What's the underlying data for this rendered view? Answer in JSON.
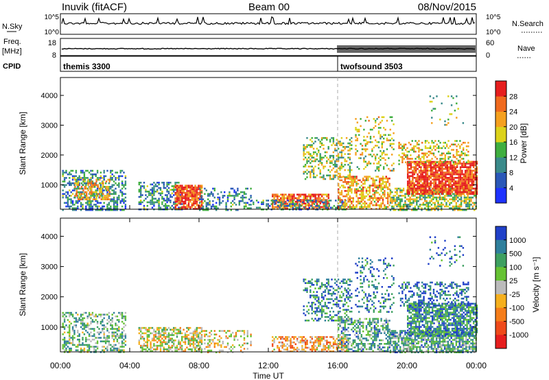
{
  "header": {
    "station": "Inuvik (fitACF)",
    "beam": "Beam 00",
    "date": "08/Nov/2015"
  },
  "noise_panel": {
    "left_label": "N.Sky",
    "right_label": "N.Search",
    "tick_top": "10^5",
    "tick_bottom": "10^0"
  },
  "freq_panel": {
    "left_label_line1": "Freq.",
    "left_label_line2": "[MHz]",
    "right_label": "Nave",
    "left_ticks": [
      "18",
      "8"
    ],
    "right_ticks": [
      "60",
      "0"
    ]
  },
  "cpid_panel": {
    "label": "CPID",
    "programs": [
      {
        "name": "themis 3300",
        "start_hour": 0
      },
      {
        "name": "twofsound 3503",
        "start_hour": 16
      }
    ]
  },
  "chart_data": [
    {
      "type": "heatmap",
      "title": "",
      "xlabel": "Time UT",
      "ylabel": "Slant Range [km]",
      "x_ticks": [
        "00:00",
        "04:00",
        "08:00",
        "12:00",
        "16:00",
        "20:00",
        "00:00"
      ],
      "xlim_hours": [
        0,
        24
      ],
      "ylim": [
        180,
        4600
      ],
      "y_ticks": [
        1000,
        2000,
        3000,
        4000
      ],
      "colorbar": {
        "label": "Power [dB]",
        "ticks": [
          "4",
          "8",
          "12",
          "16",
          "20",
          "24",
          "28"
        ],
        "range": [
          0,
          32
        ],
        "colors": [
          "#1e32ff",
          "#2a58b8",
          "#3a8a8a",
          "#3fae3f",
          "#dcd21a",
          "#f5a01e",
          "#f06a1e",
          "#e61e1e"
        ]
      },
      "regions": [
        {
          "t0": 0.1,
          "t1": 3.8,
          "r0": 180,
          "r1": 1500,
          "level": 0.3,
          "density": 0.45
        },
        {
          "t0": 0.8,
          "t1": 2.8,
          "r0": 500,
          "r1": 1200,
          "level": 0.65,
          "density": 0.55
        },
        {
          "t0": 4.5,
          "t1": 7.0,
          "r0": 180,
          "r1": 1100,
          "level": 0.3,
          "density": 0.5
        },
        {
          "t0": 6.6,
          "t1": 8.2,
          "r0": 200,
          "r1": 1000,
          "level": 0.85,
          "density": 0.85
        },
        {
          "t0": 8.0,
          "t1": 11.0,
          "r0": 180,
          "r1": 900,
          "level": 0.3,
          "density": 0.3
        },
        {
          "t0": 12.2,
          "t1": 15.5,
          "r0": 180,
          "r1": 700,
          "level": 0.82,
          "density": 0.75
        },
        {
          "t0": 11.0,
          "t1": 16.5,
          "r0": 180,
          "r1": 500,
          "level": 0.3,
          "density": 0.4
        },
        {
          "t0": 14.0,
          "t1": 16.8,
          "r0": 1200,
          "r1": 2600,
          "level": 0.5,
          "density": 0.35
        },
        {
          "t0": 16.0,
          "t1": 19.0,
          "r0": 200,
          "r1": 1300,
          "level": 0.7,
          "density": 0.55
        },
        {
          "t0": 17.0,
          "t1": 19.2,
          "r0": 1500,
          "r1": 3300,
          "level": 0.55,
          "density": 0.25
        },
        {
          "t0": 19.0,
          "t1": 24.0,
          "r0": 180,
          "r1": 900,
          "level": 0.5,
          "density": 0.6
        },
        {
          "t0": 20.0,
          "t1": 24.0,
          "r0": 700,
          "r1": 1800,
          "level": 0.9,
          "density": 0.85
        },
        {
          "t0": 19.5,
          "t1": 23.5,
          "r0": 1700,
          "r1": 2500,
          "level": 0.6,
          "density": 0.35
        },
        {
          "t0": 21.2,
          "t1": 23.2,
          "r0": 3000,
          "r1": 4000,
          "level": 0.5,
          "density": 0.1
        }
      ]
    },
    {
      "type": "heatmap",
      "title": "",
      "xlabel": "Time UT",
      "ylabel": "Slant Range [km]",
      "x_ticks": [
        "00:00",
        "04:00",
        "08:00",
        "12:00",
        "16:00",
        "20:00",
        "00:00"
      ],
      "xlim_hours": [
        0,
        24
      ],
      "ylim": [
        180,
        4600
      ],
      "y_ticks": [
        1000,
        2000,
        3000,
        4000
      ],
      "colorbar": {
        "label": "Velocity [m s⁻¹]",
        "ticks": [
          "1000",
          "500",
          "100",
          "25",
          "-25",
          "-100",
          "-500",
          "-1000"
        ],
        "range": [
          -1000,
          1000
        ],
        "colors": [
          "#2040c8",
          "#2f7f9c",
          "#3ea060",
          "#66c233",
          "#bbbbbb",
          "#f5b01e",
          "#f57d1a",
          "#ef4a1a",
          "#e61e1e"
        ]
      },
      "regions": [
        {
          "t0": 0.1,
          "t1": 3.8,
          "r0": 180,
          "r1": 1500,
          "level": 0.35,
          "density": 0.45
        },
        {
          "t0": 4.5,
          "t1": 8.2,
          "r0": 180,
          "r1": 1000,
          "level": 0.5,
          "density": 0.6
        },
        {
          "t0": 8.0,
          "t1": 11.0,
          "r0": 180,
          "r1": 900,
          "level": 0.55,
          "density": 0.3
        },
        {
          "t0": 12.2,
          "t1": 16.5,
          "r0": 180,
          "r1": 700,
          "level": 0.65,
          "density": 0.55
        },
        {
          "t0": 14.0,
          "t1": 16.8,
          "r0": 1200,
          "r1": 2600,
          "level": 0.2,
          "density": 0.35
        },
        {
          "t0": 16.0,
          "t1": 19.0,
          "r0": 200,
          "r1": 1300,
          "level": 0.3,
          "density": 0.5
        },
        {
          "t0": 17.0,
          "t1": 19.2,
          "r0": 1500,
          "r1": 3300,
          "level": 0.15,
          "density": 0.25
        },
        {
          "t0": 19.0,
          "t1": 24.0,
          "r0": 180,
          "r1": 900,
          "level": 0.3,
          "density": 0.7
        },
        {
          "t0": 20.0,
          "t1": 24.0,
          "r0": 700,
          "r1": 1800,
          "level": 0.22,
          "density": 0.75
        },
        {
          "t0": 19.5,
          "t1": 23.5,
          "r0": 1700,
          "r1": 2500,
          "level": 0.12,
          "density": 0.35
        },
        {
          "t0": 21.2,
          "t1": 23.2,
          "r0": 3000,
          "r1": 4000,
          "level": 0.15,
          "density": 0.1
        }
      ]
    }
  ]
}
